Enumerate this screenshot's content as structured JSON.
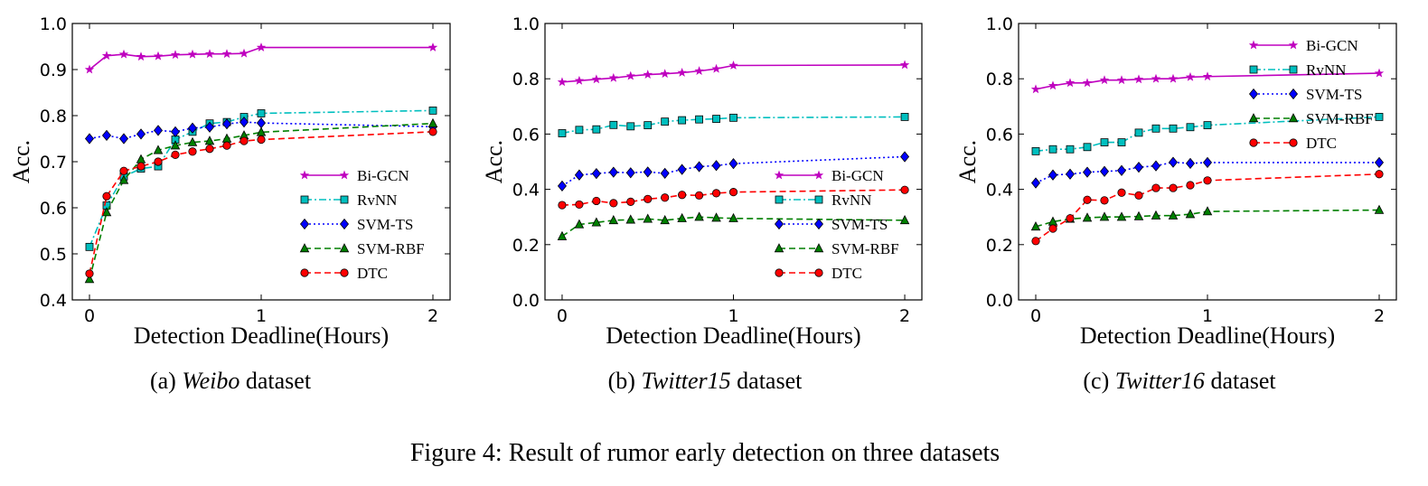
{
  "figure_caption": "Figure 4: Result of rumor early detection on three datasets",
  "series_styles": {
    "Bi-GCN": {
      "color": "#bf00bf",
      "marker": "star",
      "dash": ""
    },
    "RvNN": {
      "color": "#00bfbf",
      "marker": "square",
      "dash": "8,3,2,3"
    },
    "SVM-TS": {
      "color": "#0000ff",
      "marker": "diamond",
      "dash": "2,3"
    },
    "SVM-RBF": {
      "color": "#007f00",
      "marker": "triangle",
      "dash": "7,4"
    },
    "DTC": {
      "color": "#ff0000",
      "marker": "circle",
      "dash": "7,4"
    }
  },
  "subplot_captions": [
    {
      "prefix": "(a) ",
      "name": "Weibo",
      "suffix": " dataset"
    },
    {
      "prefix": "(b) ",
      "name": "Twitter15",
      "suffix": " dataset"
    },
    {
      "prefix": "(c) ",
      "name": "Twitter16",
      "suffix": " dataset"
    }
  ],
  "chart_data": [
    {
      "type": "line",
      "xlabel": "Detection Deadline(Hours)",
      "ylabel": "Acc.",
      "xlim": [
        -0.1,
        2.1
      ],
      "ylim": [
        0.4,
        1.0
      ],
      "xticks": [
        0,
        1,
        2
      ],
      "yticks": [
        0.4,
        0.5,
        0.6,
        0.7,
        0.8,
        0.9,
        1.0
      ],
      "ytick_labels": [
        "0.4",
        "0.5",
        "0.6",
        "0.7",
        "0.8",
        "0.9",
        "1.0"
      ],
      "grid": false,
      "legend_position": "lower-right",
      "x": [
        0,
        0.1,
        0.2,
        0.3,
        0.4,
        0.5,
        0.6,
        0.7,
        0.8,
        0.9,
        1.0,
        2.0
      ],
      "series": [
        {
          "name": "Bi-GCN",
          "values": [
            0.9,
            0.93,
            0.933,
            0.928,
            0.929,
            0.932,
            0.933,
            0.934,
            0.934,
            0.935,
            0.948,
            0.948
          ]
        },
        {
          "name": "RvNN",
          "values": [
            0.515,
            0.605,
            0.668,
            0.685,
            0.69,
            0.748,
            0.765,
            0.783,
            0.786,
            0.797,
            0.805,
            0.811
          ]
        },
        {
          "name": "SVM-TS",
          "values": [
            0.75,
            0.757,
            0.75,
            0.76,
            0.768,
            0.765,
            0.773,
            0.775,
            0.782,
            0.786,
            0.784,
            0.776
          ]
        },
        {
          "name": "SVM-RBF",
          "values": [
            0.445,
            0.59,
            0.66,
            0.705,
            0.725,
            0.735,
            0.742,
            0.745,
            0.75,
            0.757,
            0.764,
            0.783
          ]
        },
        {
          "name": "DTC",
          "values": [
            0.457,
            0.625,
            0.68,
            0.69,
            0.7,
            0.715,
            0.722,
            0.728,
            0.735,
            0.745,
            0.748,
            0.765
          ]
        }
      ]
    },
    {
      "type": "line",
      "xlabel": "Detection Deadline(Hours)",
      "ylabel": "Acc.",
      "xlim": [
        -0.1,
        2.1
      ],
      "ylim": [
        0.0,
        1.0
      ],
      "xticks": [
        0,
        1,
        2
      ],
      "yticks": [
        0.0,
        0.2,
        0.4,
        0.6,
        0.8,
        1.0
      ],
      "ytick_labels": [
        "0.0",
        "0.2",
        "0.4",
        "0.6",
        "0.8",
        "1.0"
      ],
      "grid": false,
      "legend_position": "lower-right",
      "x": [
        0,
        0.1,
        0.2,
        0.3,
        0.4,
        0.5,
        0.6,
        0.7,
        0.8,
        0.9,
        1.0,
        2.0
      ],
      "series": [
        {
          "name": "Bi-GCN",
          "values": [
            0.788,
            0.793,
            0.798,
            0.803,
            0.81,
            0.815,
            0.818,
            0.822,
            0.828,
            0.836,
            0.848,
            0.85
          ]
        },
        {
          "name": "RvNN",
          "values": [
            0.603,
            0.615,
            0.617,
            0.633,
            0.628,
            0.632,
            0.645,
            0.65,
            0.653,
            0.655,
            0.659,
            0.662
          ]
        },
        {
          "name": "SVM-TS",
          "values": [
            0.412,
            0.452,
            0.457,
            0.462,
            0.46,
            0.463,
            0.458,
            0.472,
            0.482,
            0.486,
            0.493,
            0.518
          ]
        },
        {
          "name": "SVM-RBF",
          "values": [
            0.23,
            0.273,
            0.28,
            0.288,
            0.29,
            0.293,
            0.288,
            0.295,
            0.3,
            0.297,
            0.295,
            0.288
          ]
        },
        {
          "name": "DTC",
          "values": [
            0.343,
            0.345,
            0.358,
            0.35,
            0.355,
            0.365,
            0.37,
            0.38,
            0.378,
            0.386,
            0.39,
            0.398
          ]
        }
      ]
    },
    {
      "type": "line",
      "xlabel": "Detection Deadline(Hours)",
      "ylabel": "Acc.",
      "xlim": [
        -0.1,
        2.1
      ],
      "ylim": [
        0.0,
        1.0
      ],
      "xticks": [
        0,
        1,
        2
      ],
      "yticks": [
        0.0,
        0.2,
        0.4,
        0.6,
        0.8,
        1.0
      ],
      "ytick_labels": [
        "0.0",
        "0.2",
        "0.4",
        "0.6",
        "0.8",
        "1.0"
      ],
      "grid": false,
      "legend_position": "upper-right",
      "x": [
        0,
        0.1,
        0.2,
        0.3,
        0.4,
        0.5,
        0.6,
        0.7,
        0.8,
        0.9,
        1.0,
        2.0
      ],
      "series": [
        {
          "name": "Bi-GCN",
          "values": [
            0.762,
            0.775,
            0.785,
            0.785,
            0.795,
            0.795,
            0.798,
            0.8,
            0.8,
            0.806,
            0.808,
            0.82
          ]
        },
        {
          "name": "RvNN",
          "values": [
            0.538,
            0.545,
            0.545,
            0.553,
            0.57,
            0.57,
            0.605,
            0.62,
            0.62,
            0.625,
            0.632,
            0.662
          ]
        },
        {
          "name": "SVM-TS",
          "values": [
            0.423,
            0.452,
            0.455,
            0.462,
            0.465,
            0.468,
            0.48,
            0.485,
            0.498,
            0.494,
            0.497,
            0.497
          ]
        },
        {
          "name": "SVM-RBF",
          "values": [
            0.265,
            0.283,
            0.293,
            0.297,
            0.3,
            0.3,
            0.302,
            0.305,
            0.305,
            0.31,
            0.32,
            0.325
          ]
        },
        {
          "name": "DTC",
          "values": [
            0.213,
            0.258,
            0.295,
            0.362,
            0.36,
            0.388,
            0.378,
            0.405,
            0.405,
            0.415,
            0.432,
            0.455
          ]
        }
      ]
    }
  ]
}
